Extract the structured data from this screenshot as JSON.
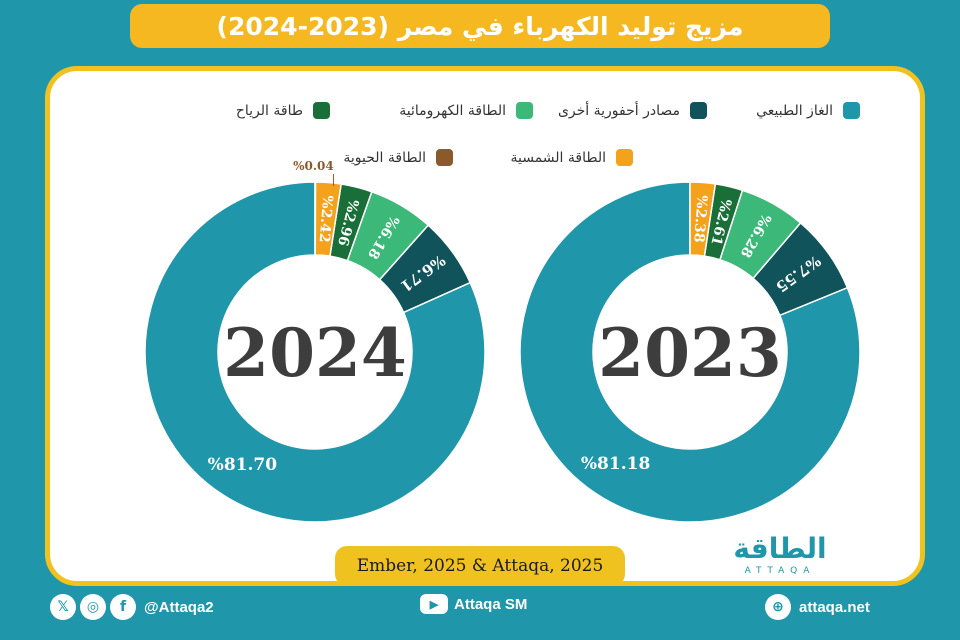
{
  "title": "مزيج توليد الكهرباء في مصر (2023-2024)",
  "legend": [
    {
      "label": "الغاز الطبيعي",
      "color": "#1f96a9"
    },
    {
      "label": "مصادر أحفورية أخرى",
      "color": "#10535a"
    },
    {
      "label": "الطاقة الكهرومائية",
      "color": "#3cb878"
    },
    {
      "label": "طاقة الرياح",
      "color": "#1a6e38"
    },
    {
      "label": "الطاقة الشمسية",
      "color": "#f4a11c"
    },
    {
      "label": "الطاقة الحيوية",
      "color": "#8b5a2b"
    }
  ],
  "chart_data": [
    {
      "type": "pie",
      "center_label": "2024",
      "categories": [
        "الغاز الطبيعي",
        "مصادر أحفورية أخرى",
        "الطاقة الكهرومائية",
        "طاقة الرياح",
        "الطاقة الشمسية",
        "الطاقة الحيوية"
      ],
      "values": [
        81.7,
        6.71,
        6.18,
        2.96,
        2.42,
        0.04
      ],
      "data_labels": [
        "%81.70",
        "%6.71",
        "%6.18",
        "%2.96",
        "%2.42",
        "%0.04"
      ]
    },
    {
      "type": "pie",
      "center_label": "2023",
      "categories": [
        "الغاز الطبيعي",
        "مصادر أحفورية أخرى",
        "الطاقة الكهرومائية",
        "طاقة الرياح",
        "الطاقة الشمسية",
        "الطاقة الحيوية"
      ],
      "values": [
        81.18,
        7.55,
        6.28,
        2.61,
        2.38,
        0
      ],
      "data_labels": [
        "%81.18",
        "%7.55",
        "%6.28",
        "%2.61",
        "%2.38",
        ""
      ]
    }
  ],
  "source": "Ember, 2025 & Attaqa, 2025",
  "logo": {
    "arabic": "الطاقة",
    "latin": "ATTAQA"
  },
  "footer": {
    "social_handle": "@Attaqa2",
    "youtube": "Attaqa SM",
    "website": "attaqa.net",
    "icons": [
      "x-icon",
      "instagram-icon",
      "facebook-icon",
      "youtube-icon",
      "globe-icon"
    ]
  }
}
